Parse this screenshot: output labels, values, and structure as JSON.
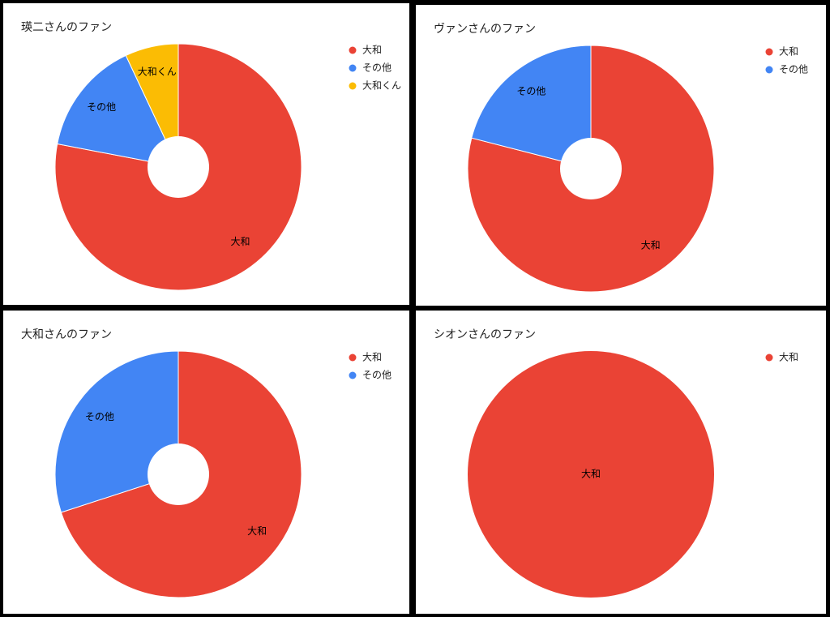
{
  "chart_data": [
    {
      "type": "pie",
      "title": "瑛二さんのファン",
      "categories": [
        "大和",
        "その他",
        "大和くん"
      ],
      "values": [
        78,
        15,
        7
      ],
      "colors": [
        "#ea4335",
        "#4285f4",
        "#fbbc04"
      ],
      "donut": true,
      "legend": "right"
    },
    {
      "type": "pie",
      "title": "ヴァンさんのファン",
      "categories": [
        "大和",
        "その他"
      ],
      "values": [
        79,
        21
      ],
      "colors": [
        "#ea4335",
        "#4285f4"
      ],
      "donut": true,
      "legend": "right"
    },
    {
      "type": "pie",
      "title": "大和さんのファン",
      "categories": [
        "大和",
        "その他"
      ],
      "values": [
        70,
        30
      ],
      "colors": [
        "#ea4335",
        "#4285f4"
      ],
      "donut": true,
      "legend": "right"
    },
    {
      "type": "pie",
      "title": "シオンさんのファン",
      "categories": [
        "大和"
      ],
      "values": [
        100
      ],
      "colors": [
        "#ea4335"
      ],
      "donut": false,
      "legend": "right"
    }
  ]
}
